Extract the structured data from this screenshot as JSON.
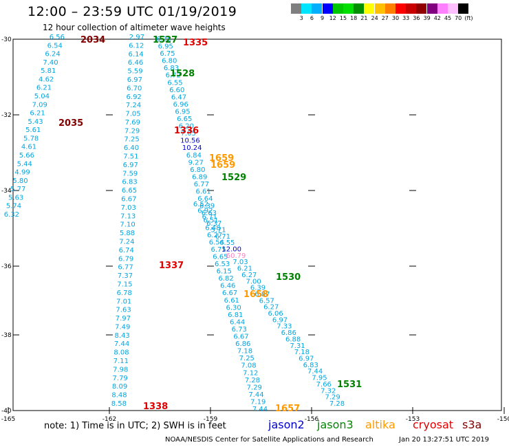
{
  "title": "12:00 – 23:59 UTC 01/19/2019",
  "subtitle": "12 hour collection of altimeter wave heights",
  "colorbar": {
    "labels": [
      "3",
      "6",
      "9",
      "12",
      "15",
      "18",
      "21",
      "24",
      "27",
      "30",
      "33",
      "36",
      "39",
      "42",
      "45",
      "70"
    ],
    "unit": "(ft)",
    "colors": [
      "#7f7f7f",
      "#00e5ff",
      "#00b0ff",
      "#0000ff",
      "#00c800",
      "#00e000",
      "#009000",
      "#ffff00",
      "#ffc000",
      "#ff8000",
      "#ff0000",
      "#c80000",
      "#900000",
      "#800080",
      "#ff80ff",
      "#ffbfff",
      "#000000"
    ]
  },
  "axes": {
    "lon_ticks": [
      "-165",
      "-162",
      "-159",
      "-156",
      "-153",
      "-150"
    ],
    "lat_ticks": [
      "-30",
      "-32",
      "-34",
      "-36",
      "-38",
      "-40"
    ]
  },
  "map_data": {
    "tracks": [
      {
        "values": [
          "6.56",
          "6.54",
          "6.24",
          "7.40",
          "5.81",
          "4.62",
          "6.21",
          "5.04",
          "7.09",
          "6.21",
          "5.43",
          "5.61",
          "5.78",
          "4.61",
          "5.66",
          "5.44",
          "4.99",
          "5.80",
          "5.77",
          "5.63",
          "5.74",
          "6.32"
        ]
      },
      {
        "values": [
          "2.97",
          "6.12",
          "6.14",
          "6.46",
          "5.59",
          "6.97",
          "6.70",
          "6.92",
          "7.24",
          "7.05",
          "7.69",
          "7.29",
          "7.25",
          "6.40",
          "7.51",
          "6.97",
          "7.59",
          "6.83",
          "6.65",
          "6.67",
          "7.03",
          "7.13",
          "7.10",
          "5.88",
          "7.24",
          "6.74",
          "6.79",
          "6.77",
          "7.37",
          "7.15",
          "6.78",
          "7.01",
          "7.63",
          "7.97",
          "7.49",
          "8.43",
          "7.44",
          "8.08",
          "7.11",
          "7.98",
          "7.79",
          "8.09",
          "8.48",
          "8.58"
        ]
      },
      {
        "values": [
          "6.28",
          "6.95",
          "6.75",
          "6.80",
          "6.83",
          "6.72",
          "6.55",
          "6.60",
          "6.47",
          "6.96",
          "6.95",
          "6.65",
          "6.20",
          "7.05",
          "10.56",
          "10.24",
          "6.84",
          "9.27",
          "6.80",
          "6.89",
          "6.77",
          "6.61",
          "6.64",
          "6.39",
          "6.63",
          "6.51",
          "6.48",
          "6.27",
          "6.54",
          "6.75",
          "6.65",
          "6.53",
          "6.15",
          "6.82",
          "6.46",
          "6.67",
          "6.61",
          "6.30",
          "6.81",
          "6.44",
          "6.73",
          "6.67",
          "6.86",
          "7.18",
          "7.25",
          "7.08",
          "7.12",
          "7.28",
          "7.29",
          "7.44",
          "7.19",
          "7.44"
        ]
      },
      {
        "values": [
          "6.52",
          "6.92",
          "6.71",
          "6.37",
          "5.71",
          "6.71",
          "6.55",
          "12.00",
          "60.79",
          "7.03",
          "6.21",
          "6.27",
          "7.00",
          "6.39",
          "6.87",
          "6.57",
          "6.27",
          "6.06",
          "6.97",
          "7.33",
          "6.86",
          "6.88",
          "7.31",
          "7.18",
          "6.97",
          "6.83",
          "7.44",
          "7.95",
          "7.66",
          "7.32",
          "7.29",
          "7.28"
        ]
      }
    ],
    "labels": [
      {
        "text": "2034",
        "color": "#800000"
      },
      {
        "text": "1527",
        "color": "#008000"
      },
      {
        "text": "1335",
        "color": "#e00000"
      },
      {
        "text": "1528",
        "color": "#008000"
      },
      {
        "text": "2035",
        "color": "#800000"
      },
      {
        "text": "1336",
        "color": "#e00000"
      },
      {
        "text": "1659",
        "color": "#ff9900"
      },
      {
        "text": "1659",
        "color": "#ff9900"
      },
      {
        "text": "1529",
        "color": "#008000"
      },
      {
        "text": "1337",
        "color": "#e00000"
      },
      {
        "text": "1530",
        "color": "#008000"
      },
      {
        "text": "1658",
        "color": "#ff9900"
      },
      {
        "text": "1531",
        "color": "#008000"
      },
      {
        "text": "1338",
        "color": "#e00000"
      },
      {
        "text": "1657",
        "color": "#ff9900"
      }
    ]
  },
  "note": "note: 1) Time is in UTC; 2) SWH is in feet",
  "satellites": [
    {
      "name": "jason2",
      "color": "#0000cc"
    },
    {
      "name": "jason3",
      "color": "#008800"
    },
    {
      "name": "altika",
      "color": "#ff9900"
    },
    {
      "name": "cryosat",
      "color": "#e00000"
    },
    {
      "name": "s3a",
      "color": "#800000"
    }
  ],
  "credit": "NOAA/NESDIS Center for Satellite Applications and Research",
  "timestamp": "Jan 20 13:27:51 UTC 2019"
}
